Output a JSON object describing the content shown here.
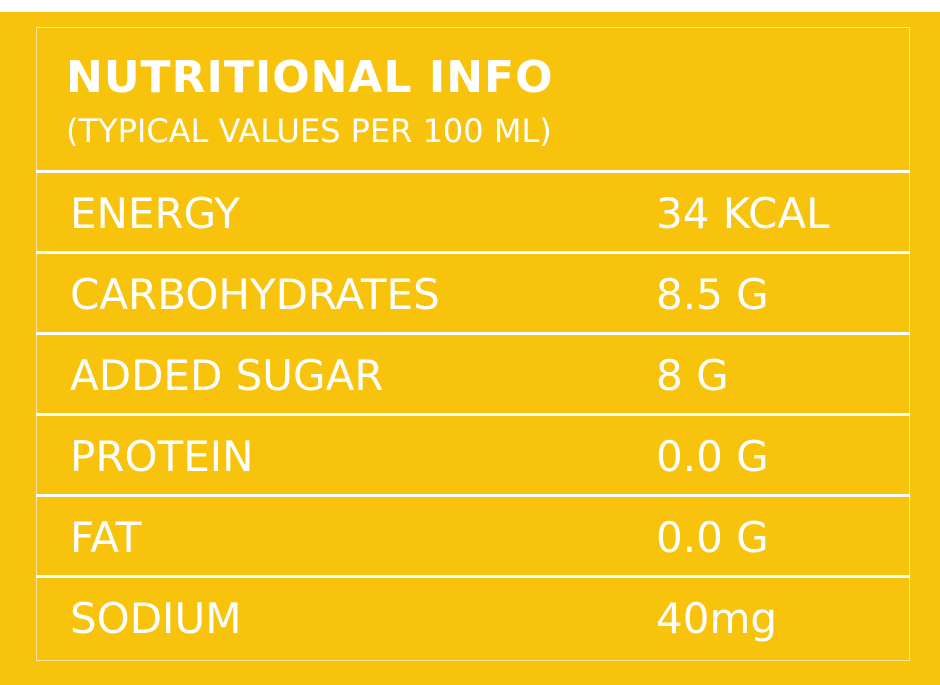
{
  "header": {
    "title": "NUTRITIONAL INFO",
    "subtitle": "(TYPICAL VALUES PER 100 ML)"
  },
  "table": {
    "rows": [
      [
        "ENERGY",
        "34 KCAL"
      ],
      [
        "CARBOHYDRATES",
        "8.5 G"
      ],
      [
        "ADDED SUGAR",
        "8 G"
      ],
      [
        "PROTEIN",
        "0.0 G"
      ],
      [
        "FAT",
        "0.0 G"
      ],
      [
        "SODIUM",
        "40mg"
      ]
    ]
  }
}
